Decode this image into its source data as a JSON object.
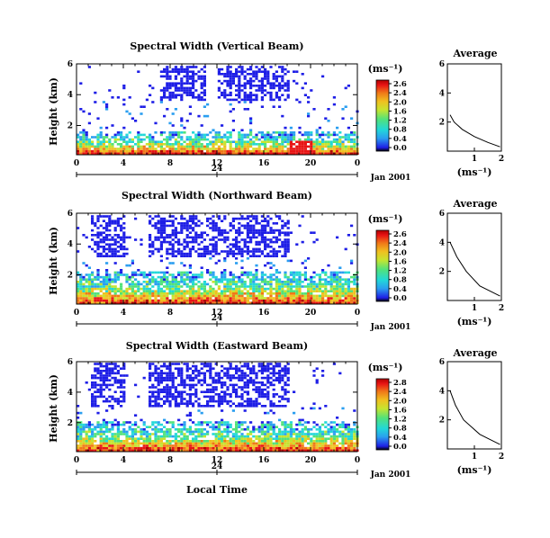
{
  "chart_data": [
    {
      "type": "heatmap",
      "title": "Spectral Width (Vertical Beam)",
      "ylabel": "Height (km)",
      "y_ticks": [
        "6",
        "4",
        "2"
      ],
      "x_ticks": [
        "0",
        "4",
        "8",
        "12",
        "16",
        "20",
        "0"
      ],
      "xlim_hours": [
        0,
        24
      ],
      "ylim_km": [
        0.1,
        6
      ],
      "secondary_axis_label": "24",
      "date_label": "Jan 2001",
      "colorbar": {
        "unit": "(ms⁻¹)",
        "ticks": [
          "2.6",
          "2.4",
          "2.0",
          "1.6",
          "1.2",
          "0.8",
          "0.4",
          "0.0"
        ],
        "range": [
          0,
          2.8
        ]
      },
      "average_profile": {
        "title": "Average",
        "xlabel": "(ms⁻¹)",
        "x_ticks": [
          "1",
          "2"
        ],
        "y_ticks": [
          "6",
          "4",
          "2"
        ],
        "xlim": [
          0,
          2
        ],
        "height_km": [
          0.3,
          0.6,
          1.0,
          1.5,
          2.0,
          2.5
        ],
        "width_ms": [
          1.95,
          1.5,
          1.0,
          0.55,
          0.25,
          0.1
        ]
      },
      "clear_air_heights_km": [
        0.2,
        1.5
      ],
      "upper_echo_heights_km": [
        3.5,
        5.8
      ],
      "upper_echo_hours": [
        [
          7,
          11
        ],
        [
          12,
          18
        ]
      ]
    },
    {
      "type": "heatmap",
      "title": "Spectral Width (Northward Beam)",
      "ylabel": "Height (km)",
      "y_ticks": [
        "6",
        "4",
        "2"
      ],
      "x_ticks": [
        "0",
        "4",
        "8",
        "12",
        "16",
        "20",
        "0"
      ],
      "xlim_hours": [
        0,
        24
      ],
      "ylim_km": [
        0.1,
        6
      ],
      "secondary_axis_label": "24",
      "date_label": "Jan 2001",
      "colorbar": {
        "unit": "(ms⁻¹)",
        "ticks": [
          "2.6",
          "2.4",
          "2.0",
          "1.6",
          "1.2",
          "0.8",
          "0.4",
          "0.0"
        ],
        "range": [
          0,
          2.8
        ]
      },
      "average_profile": {
        "title": "Average",
        "xlabel": "(ms⁻¹)",
        "x_ticks": [
          "1",
          "2"
        ],
        "y_ticks": [
          "6",
          "4",
          "2"
        ],
        "xlim": [
          0,
          2
        ],
        "height_km": [
          0.3,
          1.0,
          2.0,
          3.0,
          4.0
        ],
        "width_ms": [
          1.95,
          1.2,
          0.7,
          0.35,
          0.1
        ]
      },
      "clear_air_heights_km": [
        0.2,
        2.2
      ],
      "upper_echo_heights_km": [
        3.0,
        5.8
      ],
      "upper_echo_hours": [
        [
          1,
          4
        ],
        [
          6,
          18
        ]
      ]
    },
    {
      "type": "heatmap",
      "title": "Spectral Width (Eastward Beam)",
      "ylabel": "Height (km)",
      "y_ticks": [
        "6",
        "4",
        "2"
      ],
      "x_ticks": [
        "0",
        "4",
        "8",
        "12",
        "16",
        "20",
        "0"
      ],
      "xlim_hours": [
        0,
        24
      ],
      "ylim_km": [
        0.1,
        6
      ],
      "secondary_axis_label": "24",
      "date_label": "Jan 2001",
      "colorbar": {
        "unit": "(ms⁻¹)",
        "ticks": [
          "2.8",
          "2.4",
          "2.0",
          "1.6",
          "1.2",
          "0.8",
          "0.4",
          "0.0"
        ],
        "range": [
          0,
          2.8
        ]
      },
      "average_profile": {
        "title": "Average",
        "xlabel": "(ms⁻¹)",
        "x_ticks": [
          "1",
          "2"
        ],
        "y_ticks": [
          "6",
          "4",
          "2"
        ],
        "xlim": [
          0,
          2
        ],
        "height_km": [
          0.3,
          1.0,
          2.0,
          3.0,
          4.0
        ],
        "width_ms": [
          1.95,
          1.2,
          0.6,
          0.3,
          0.1
        ]
      },
      "clear_air_heights_km": [
        0.2,
        2.0
      ],
      "upper_echo_heights_km": [
        3.0,
        5.8
      ],
      "upper_echo_hours": [
        [
          1,
          4
        ],
        [
          6,
          18
        ]
      ]
    }
  ],
  "xlabel": "Local Time",
  "colors": {
    "axis": "#000000",
    "colormap": [
      "#000000",
      "#1e1ee6",
      "#2a9ef0",
      "#22d8d8",
      "#52e27a",
      "#c6e430",
      "#f0c020",
      "#f07818",
      "#e81414",
      "#b00000"
    ]
  }
}
